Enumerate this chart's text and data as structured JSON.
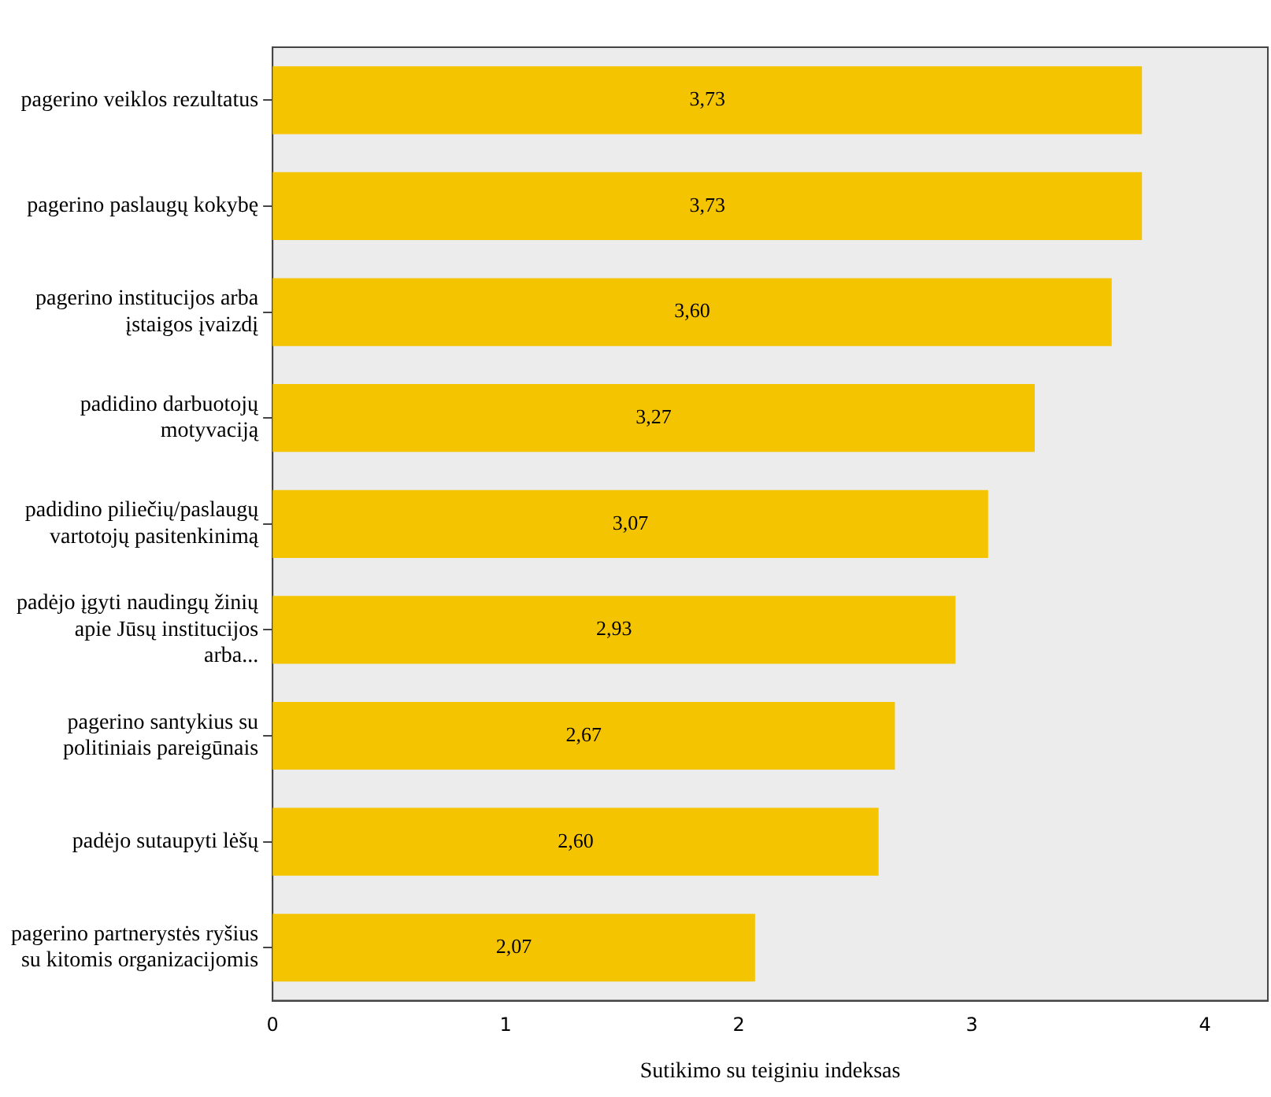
{
  "chart_data": {
    "type": "bar",
    "orientation": "horizontal",
    "xlabel": "Sutikimo su teiginiu indeksas",
    "categories": [
      "pagerino veiklos rezultatus",
      "pagerino paslaugų kokybę",
      "pagerino institucijos arba įstaigos įvaizdį",
      "padidino darbuotojų motyvaciją",
      "padidino piliečių/paslaugų vartotojų pasitenkinimą",
      "padėjo įgyti naudingų žinių apie Jūsų institucijos arba...",
      "pagerino santykius su politiniais pareigūnais",
      "padėjo sutaupyti lėšų",
      "pagerino partnerystės ryšius su kitomis organizacijomis"
    ],
    "values": [
      3.73,
      3.73,
      3.6,
      3.27,
      3.07,
      2.93,
      2.67,
      2.6,
      2.07
    ],
    "value_labels": [
      "3,73",
      "3,73",
      "3,60",
      "3,27",
      "3,07",
      "2,93",
      "2,67",
      "2,60",
      "2,07"
    ],
    "color": "#f5c400",
    "xlim": [
      0,
      4.27
    ],
    "xticks": [
      0,
      1,
      2,
      3,
      4
    ],
    "grid": false,
    "legend": false
  }
}
